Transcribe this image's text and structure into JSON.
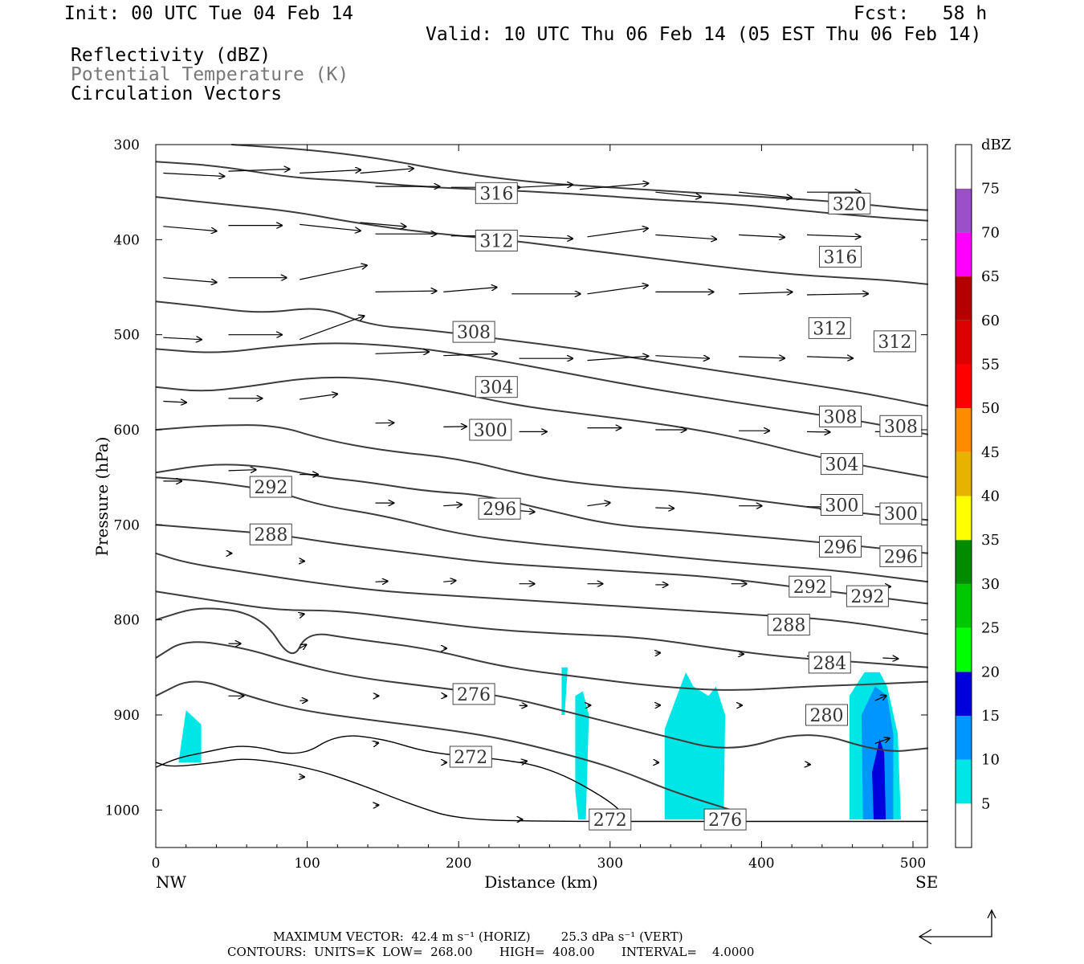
{
  "header": {
    "init": "Init: 00 UTC Tue 04 Feb 14",
    "fcst": "Fcst:   58 h",
    "valid": "Valid: 10 UTC Thu 06 Feb 14 (05 EST Thu 06 Feb 14)",
    "field1": "Reflectivity (dBZ)",
    "field2": "Potential Temperature (K)",
    "field3": "Circulation Vectors"
  },
  "footer": {
    "line1": "MAXIMUM VECTOR:  42.4 m s⁻¹ (HORIZ)        25.3 dPa s⁻¹ (VERT)",
    "line2": "CONTOURS:  UNITS=K  LOW=  268.00       HIGH=  408.00       INTERVAL=    4.0000"
  },
  "colors": {
    "contour": "#3c3c3c",
    "frame": "#000000"
  },
  "chart_data": {
    "type": "contour",
    "xlabel": "Distance (km)",
    "ylabel": "Pressure (hPa)",
    "xlim": [
      0,
      510
    ],
    "ylim": [
      1040,
      300
    ],
    "xticks": [
      0,
      100,
      200,
      300,
      400,
      500
    ],
    "yticks": [
      300,
      400,
      500,
      600,
      700,
      800,
      900,
      1000
    ],
    "x_end_labels": {
      "left": "NW",
      "right": "SE"
    },
    "colorbar": {
      "title": "dBZ",
      "levels": [
        5,
        10,
        15,
        20,
        25,
        30,
        35,
        40,
        45,
        50,
        55,
        60,
        65,
        70,
        75
      ],
      "colors": [
        "#ffffff",
        "#00e6e6",
        "#0096ff",
        "#0000dc",
        "#00ff00",
        "#00c800",
        "#008c00",
        "#ffff00",
        "#e6b400",
        "#ff8c00",
        "#ff0000",
        "#dc0000",
        "#b40000",
        "#ff00ff",
        "#9b4fc8",
        "#ffffff"
      ]
    },
    "reflectivity_cells": [
      {
        "dbz": 5,
        "x": [
          15,
          20,
          30,
          30,
          20,
          15
        ],
        "p": [
          950,
          895,
          910,
          950,
          950,
          950
        ]
      },
      {
        "dbz": 5,
        "x": [
          268,
          272,
          270,
          268
        ],
        "p": [
          850,
          850,
          900,
          900
        ]
      },
      {
        "dbz": 5,
        "x": [
          277,
          282,
          286,
          284,
          279,
          277
        ],
        "p": [
          880,
          875,
          900,
          1010,
          1010,
          980
        ]
      },
      {
        "dbz": 5,
        "x": [
          336,
          350,
          355,
          365,
          370,
          376,
          375,
          336
        ],
        "p": [
          915,
          855,
          870,
          880,
          870,
          900,
          1010,
          1010
        ]
      },
      {
        "dbz": 5,
        "x": [
          458,
          468,
          478,
          483,
          490,
          492,
          458
        ],
        "p": [
          880,
          855,
          855,
          870,
          920,
          1010,
          1010
        ]
      },
      {
        "dbz": 10,
        "x": [
          466,
          475,
          483,
          487,
          487,
          467
        ],
        "p": [
          900,
          870,
          880,
          920,
          1010,
          1010
        ]
      },
      {
        "dbz": 15,
        "x": [
          473,
          478,
          481,
          482,
          474
        ],
        "p": [
          960,
          925,
          940,
          1010,
          1010
        ]
      }
    ],
    "theta_contours": [
      {
        "theta": 272,
        "labels": [
          {
            "x": 300,
            "p": 1010
          }
        ]
      },
      {
        "theta": 276,
        "labels": [
          {
            "x": 376,
            "p": 1010
          }
        ]
      },
      {
        "theta": 272,
        "labels": [
          {
            "x": 208,
            "p": 944
          }
        ]
      },
      {
        "theta": 276,
        "labels": [
          {
            "x": 210,
            "p": 878
          }
        ]
      },
      {
        "theta": 280,
        "labels": [
          {
            "x": 443,
            "p": 900
          }
        ]
      },
      {
        "theta": 284,
        "labels": [
          {
            "x": 445,
            "p": 845
          }
        ]
      },
      {
        "theta": 288,
        "labels": [
          {
            "x": 76,
            "p": 710
          },
          {
            "x": 418,
            "p": 805
          }
        ]
      },
      {
        "theta": 292,
        "labels": [
          {
            "x": 76,
            "p": 660
          },
          {
            "x": 432,
            "p": 765
          },
          {
            "x": 470,
            "p": 775
          }
        ]
      },
      {
        "theta": 296,
        "labels": [
          {
            "x": 227,
            "p": 683
          },
          {
            "x": 452,
            "p": 723
          },
          {
            "x": 492,
            "p": 733
          }
        ]
      },
      {
        "theta": 300,
        "labels": [
          {
            "x": 221,
            "p": 600
          },
          {
            "x": 453,
            "p": 679
          },
          {
            "x": 492,
            "p": 688
          }
        ]
      },
      {
        "theta": 304,
        "labels": [
          {
            "x": 225,
            "p": 555
          },
          {
            "x": 453,
            "p": 636
          }
        ]
      },
      {
        "theta": 308,
        "labels": [
          {
            "x": 210,
            "p": 497
          },
          {
            "x": 452,
            "p": 586
          },
          {
            "x": 492,
            "p": 596
          }
        ]
      },
      {
        "theta": 312,
        "labels": [
          {
            "x": 225,
            "p": 401
          },
          {
            "x": 445,
            "p": 493
          },
          {
            "x": 488,
            "p": 507
          }
        ]
      },
      {
        "theta": 316,
        "labels": [
          {
            "x": 225,
            "p": 351
          },
          {
            "x": 452,
            "p": 418
          }
        ]
      },
      {
        "theta": 320,
        "labels": [
          {
            "x": 458,
            "p": 362
          }
        ]
      }
    ],
    "vector_legend": {
      "horiz_ms": 42.4,
      "vert_dpas": 25.3
    }
  }
}
